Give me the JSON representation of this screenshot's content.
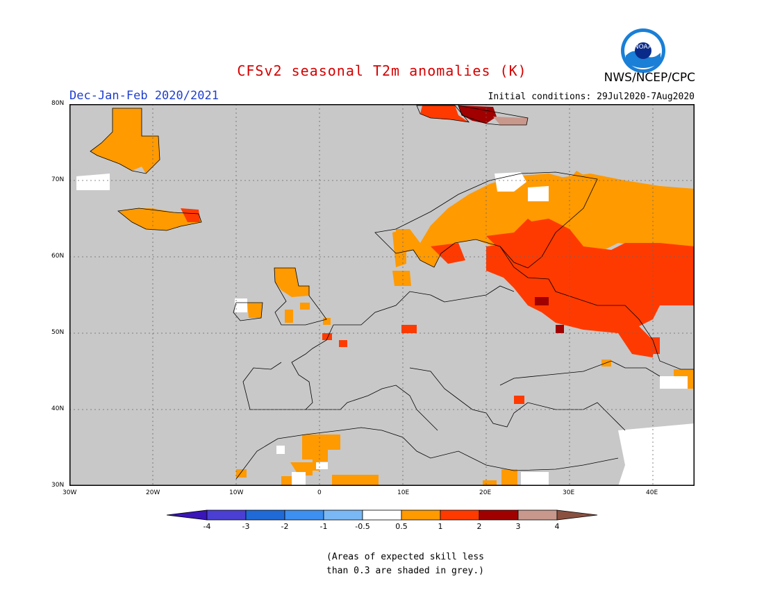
{
  "title": "CFSv2 seasonal T2m anomalies (K)",
  "organization": "NWS/NCEP/CPC",
  "logo_text": "NOAA",
  "season": "Dec-Jan-Feb 2020/2021",
  "initial_conditions": "Initial conditions: 29Jul2020-7Aug2020",
  "note_line1": "(Areas of expected skill less",
  "note_line2": "than 0.3 are shaded in grey.)",
  "map": {
    "lon_range": [
      -30,
      45
    ],
    "lat_range": [
      30,
      80
    ],
    "lon_ticks": [
      "30W",
      "20W",
      "10W",
      "0",
      "10E",
      "20E",
      "30E",
      "40E"
    ],
    "lat_ticks": [
      "80N",
      "70N",
      "60N",
      "50N",
      "40N",
      "30N"
    ],
    "land_grey": "#c8c8c8",
    "ocean_grey": "#c8c8c8"
  },
  "colorbar": {
    "labels": [
      "-4",
      "-3",
      "-2",
      "-1",
      "-0.5",
      "0.5",
      "1",
      "2",
      "3",
      "4"
    ],
    "colors": [
      "#3a15b8",
      "#4a3fd2",
      "#1f6ad6",
      "#3d8ff0",
      "#7ab8f5",
      "#ffffff",
      "#ff9a00",
      "#ff3a00",
      "#a00000",
      "#c9988c",
      "#8a5040"
    ]
  }
}
